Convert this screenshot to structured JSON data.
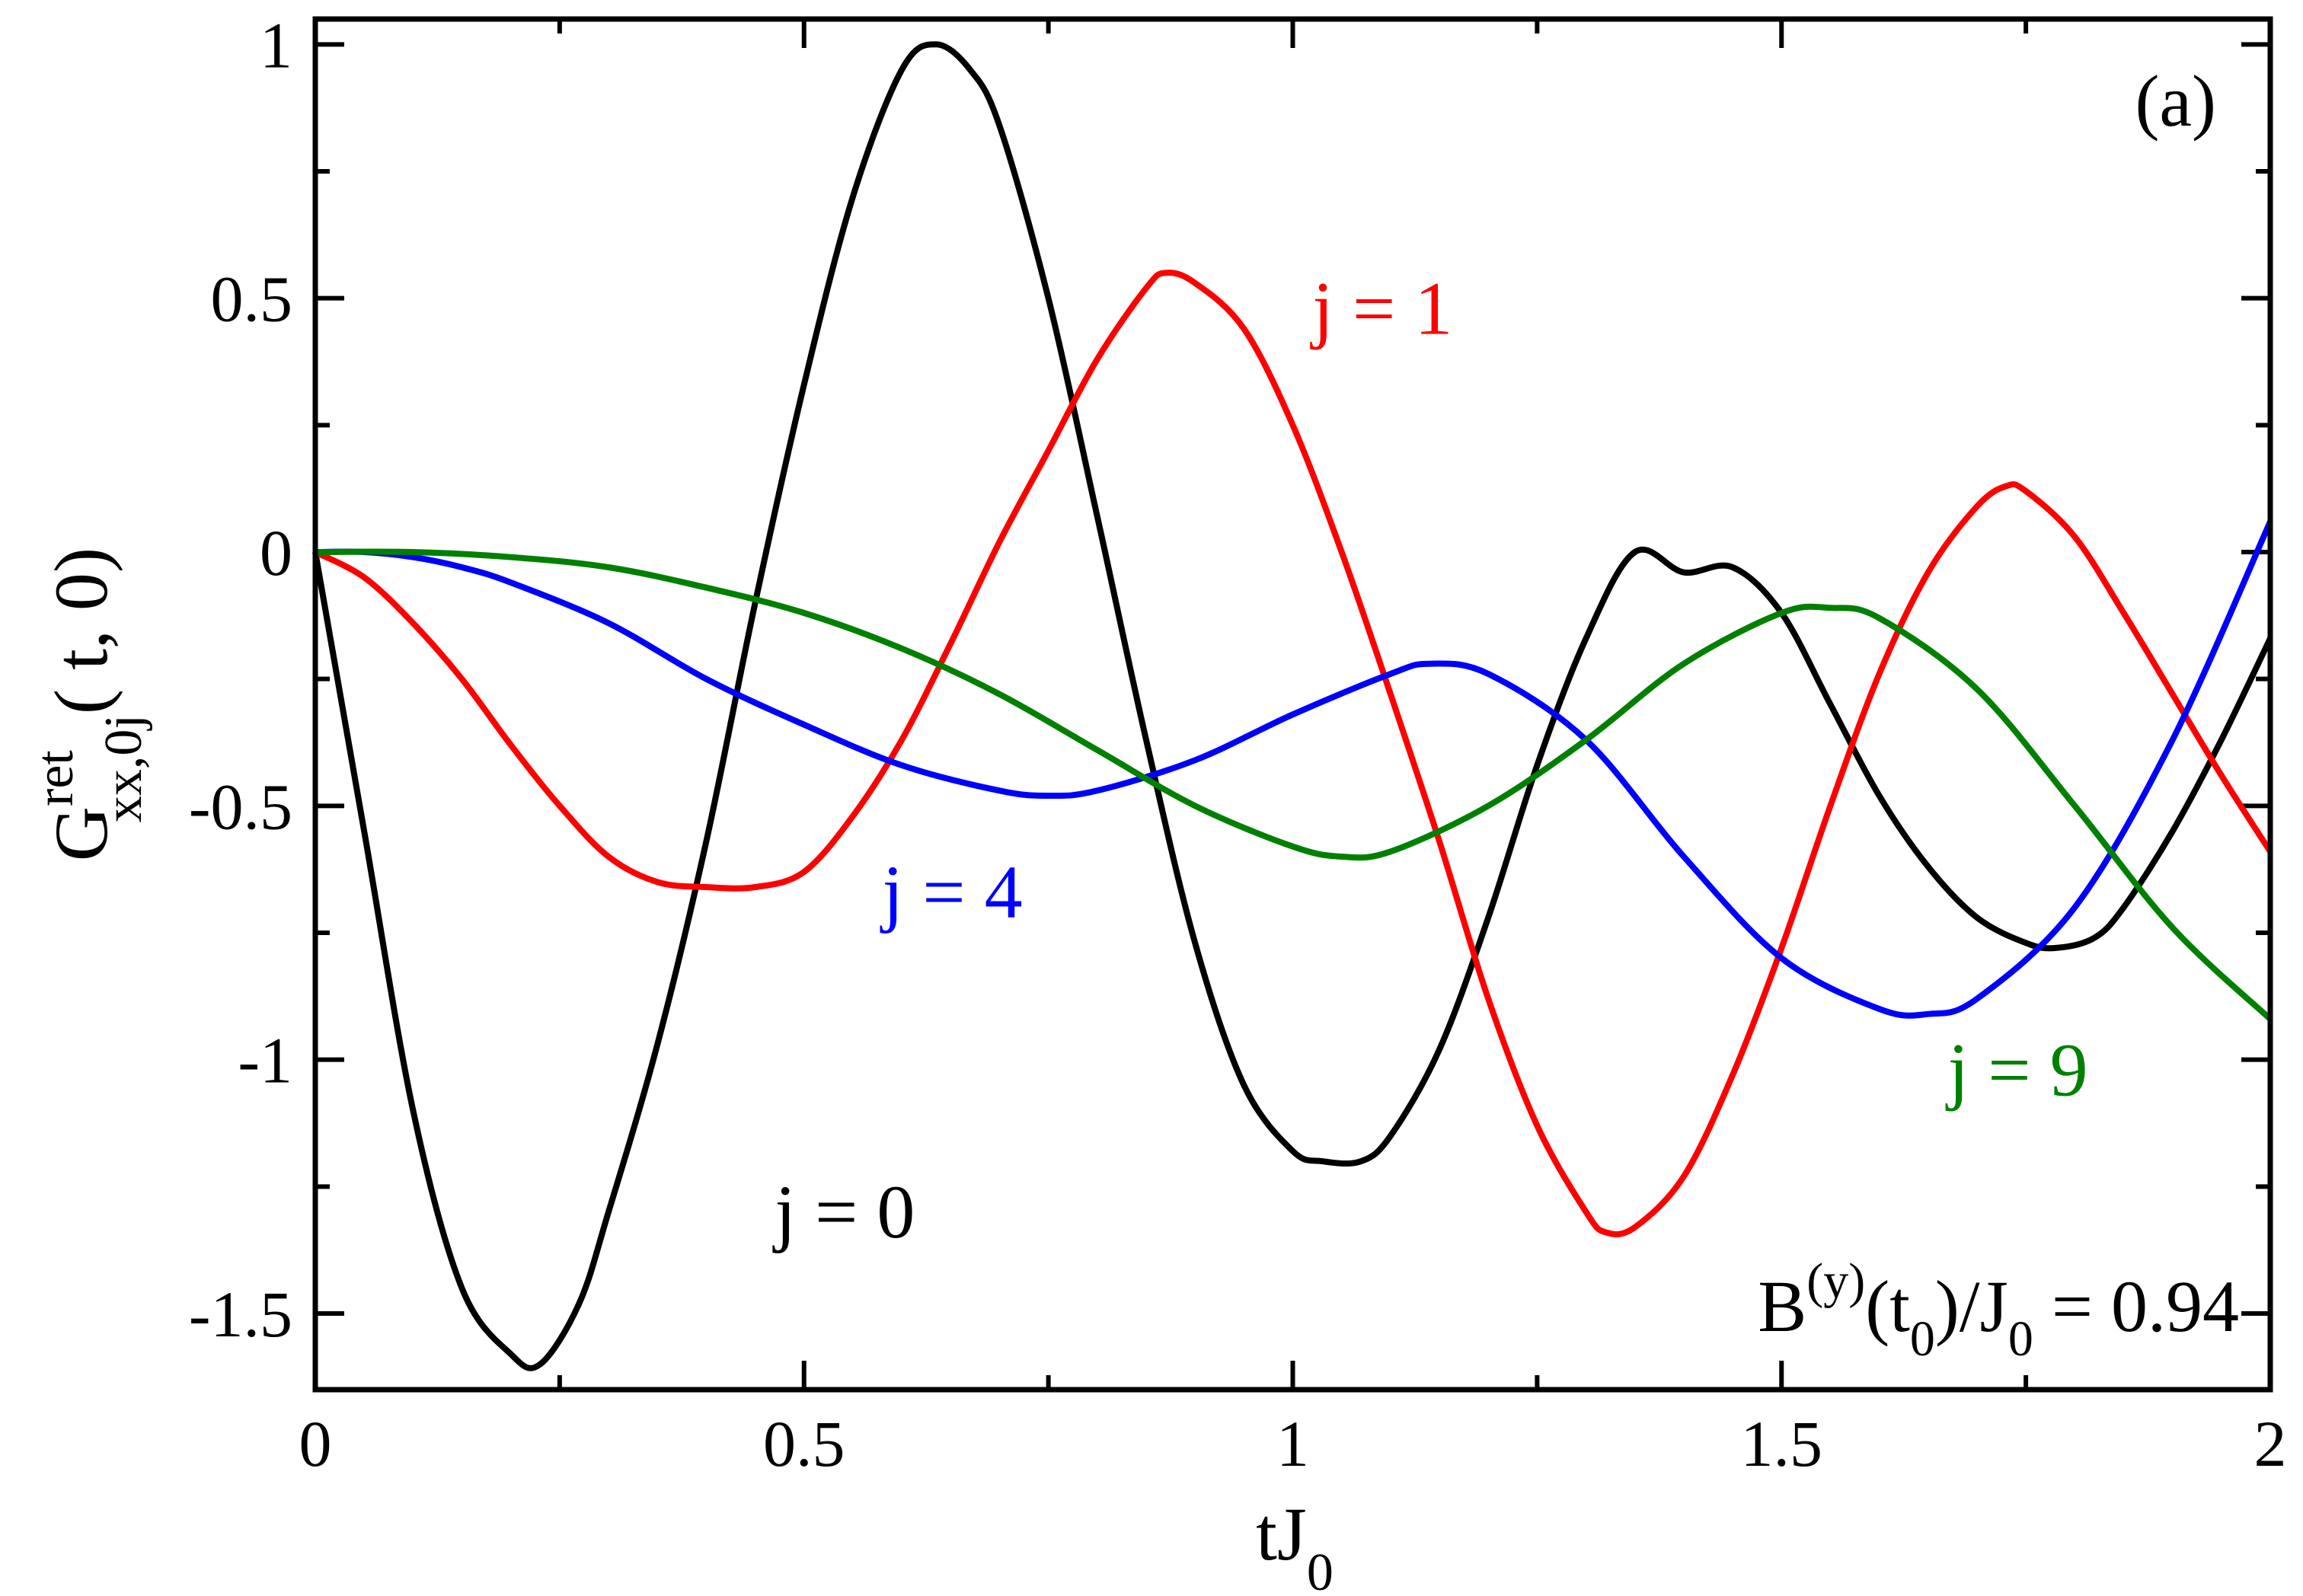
{
  "chart_data": {
    "type": "line",
    "panel_label": "(a)",
    "xlabel_main": "tJ",
    "xlabel_sub": "0",
    "ylabel_main": "G",
    "ylabel_sup": "ret",
    "ylabel_sub": "xx,0j",
    "ylabel_args": "( t, 0)",
    "xlim": [
      0,
      2
    ],
    "ylim": [
      -1.65,
      1.05
    ],
    "xticks": [
      0,
      0.5,
      1,
      1.5,
      2
    ],
    "xtick_labels": [
      "0",
      "0.5",
      "1",
      "1.5",
      "2"
    ],
    "yticks": [
      1,
      0.5,
      0,
      -0.5,
      -1,
      -1.5
    ],
    "ytick_labels": [
      "1",
      "0.5",
      "0",
      "-0.5",
      "-1",
      "-1.5"
    ],
    "annotation": {
      "B": "B",
      "sup": "(y)",
      "open": "(t",
      "t_sub": "0",
      "mid": ")/J",
      "j_sub": "0",
      "rest": " = 0.94"
    },
    "series": [
      {
        "name": "j = 0",
        "color": "#000000",
        "x": [
          0,
          0.05,
          0.1,
          0.15,
          0.2,
          0.23,
          0.27,
          0.3,
          0.35,
          0.4,
          0.45,
          0.5,
          0.55,
          0.6,
          0.635,
          0.67,
          0.7,
          0.75,
          0.8,
          0.85,
          0.9,
          0.95,
          1.0,
          1.03,
          1.07,
          1.1,
          1.15,
          1.2,
          1.25,
          1.3,
          1.35,
          1.4,
          1.45,
          1.5,
          1.55,
          1.6,
          1.65,
          1.7,
          1.75,
          1.78,
          1.82,
          1.85,
          1.9,
          1.95,
          2.0
        ],
        "y": [
          0,
          -0.55,
          -1.1,
          -1.45,
          -1.58,
          -1.6,
          -1.48,
          -1.3,
          -0.97,
          -0.57,
          -0.1,
          0.33,
          0.7,
          0.95,
          1.0,
          0.95,
          0.84,
          0.5,
          0.07,
          -0.37,
          -0.77,
          -1.05,
          -1.18,
          -1.2,
          -1.2,
          -1.15,
          -0.98,
          -0.72,
          -0.42,
          -0.17,
          0.0,
          -0.04,
          -0.03,
          -0.12,
          -0.3,
          -0.48,
          -0.62,
          -0.72,
          -0.77,
          -0.78,
          -0.76,
          -0.7,
          -0.55,
          -0.37,
          -0.17
        ]
      },
      {
        "name": "j = 1",
        "color": "#ff0000",
        "x": [
          0,
          0.05,
          0.1,
          0.15,
          0.2,
          0.25,
          0.3,
          0.35,
          0.4,
          0.45,
          0.5,
          0.55,
          0.6,
          0.65,
          0.7,
          0.75,
          0.8,
          0.85,
          0.87,
          0.9,
          0.95,
          1.0,
          1.05,
          1.1,
          1.15,
          1.2,
          1.25,
          1.3,
          1.32,
          1.35,
          1.4,
          1.45,
          1.5,
          1.55,
          1.6,
          1.65,
          1.7,
          1.73,
          1.75,
          1.8,
          1.85,
          1.9,
          1.95,
          2.0
        ],
        "y": [
          0,
          -0.05,
          -0.14,
          -0.25,
          -0.38,
          -0.5,
          -0.6,
          -0.65,
          -0.66,
          -0.66,
          -0.63,
          -0.52,
          -0.37,
          -0.18,
          0.02,
          0.2,
          0.38,
          0.52,
          0.55,
          0.53,
          0.44,
          0.25,
          0.0,
          -0.28,
          -0.57,
          -0.88,
          -1.13,
          -1.3,
          -1.34,
          -1.33,
          -1.23,
          -1.03,
          -0.78,
          -0.5,
          -0.24,
          -0.04,
          0.09,
          0.13,
          0.12,
          0.03,
          -0.12,
          -0.28,
          -0.44,
          -0.59
        ]
      },
      {
        "name": "j = 4",
        "color": "#0000ff",
        "x": [
          0,
          0.05,
          0.1,
          0.15,
          0.2,
          0.3,
          0.4,
          0.5,
          0.6,
          0.7,
          0.75,
          0.8,
          0.9,
          1.0,
          1.1,
          1.14,
          1.2,
          1.3,
          1.4,
          1.5,
          1.6,
          1.65,
          1.7,
          1.8,
          1.9,
          2.0
        ],
        "y": [
          0,
          0.0,
          -0.01,
          -0.03,
          -0.06,
          -0.14,
          -0.25,
          -0.34,
          -0.42,
          -0.47,
          -0.48,
          -0.47,
          -0.41,
          -0.32,
          -0.24,
          -0.22,
          -0.24,
          -0.37,
          -0.6,
          -0.8,
          -0.9,
          -0.91,
          -0.88,
          -0.7,
          -0.37,
          0.06
        ]
      },
      {
        "name": "j = 9",
        "color": "#008000",
        "x": [
          0,
          0.1,
          0.2,
          0.3,
          0.4,
          0.5,
          0.6,
          0.7,
          0.8,
          0.9,
          1.0,
          1.05,
          1.1,
          1.2,
          1.3,
          1.4,
          1.5,
          1.55,
          1.6,
          1.7,
          1.8,
          1.9,
          2.0
        ],
        "y": [
          0,
          0.0,
          -0.01,
          -0.03,
          -0.07,
          -0.12,
          -0.19,
          -0.28,
          -0.39,
          -0.5,
          -0.58,
          -0.6,
          -0.59,
          -0.5,
          -0.37,
          -0.22,
          -0.12,
          -0.11,
          -0.13,
          -0.27,
          -0.5,
          -0.74,
          -0.92
        ]
      }
    ],
    "series_labels": [
      {
        "series": 0,
        "text": "j = 0",
        "x": 0.47,
        "y": -1.35
      },
      {
        "series": 1,
        "text": "j = 1",
        "x": 1.02,
        "y": 0.43
      },
      {
        "series": 2,
        "text": "j = 4",
        "x": 0.58,
        "y": -0.72
      },
      {
        "series": 3,
        "text": "j = 9",
        "x": 1.67,
        "y": -1.07
      }
    ]
  }
}
